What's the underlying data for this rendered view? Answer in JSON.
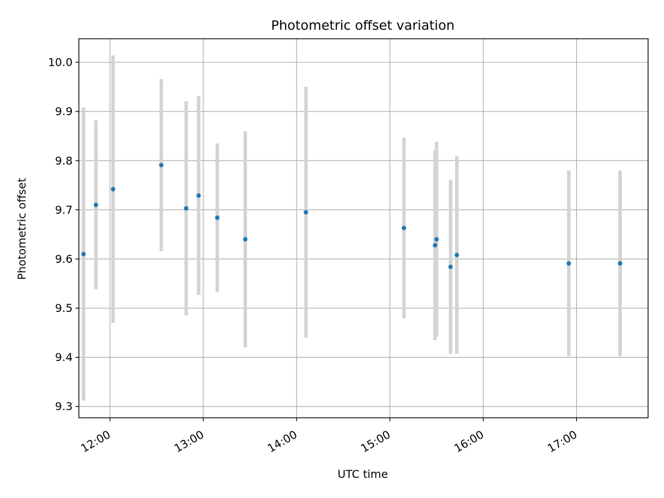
{
  "chart_data": {
    "type": "scatter",
    "title": "Photometric offset variation",
    "xlabel": "UTC time",
    "ylabel": "Photometric offset",
    "x_axis": "time",
    "xlim": [
      "11:40",
      "17:46"
    ],
    "ylim": [
      9.277,
      10.048
    ],
    "xticks": [
      "12:00",
      "13:00",
      "14:00",
      "15:00",
      "16:00",
      "17:00"
    ],
    "yticks": [
      9.3,
      9.4,
      9.5,
      9.6,
      9.7,
      9.8,
      9.9,
      10.0
    ],
    "grid": true,
    "colors": {
      "points": "#1f77b4",
      "errorbars": "#d3d3d3",
      "grid": "#b0b0b0"
    },
    "series": [
      {
        "points": [
          {
            "x": "11:43",
            "y": 9.61,
            "yerr": 0.298
          },
          {
            "x": "11:51",
            "y": 9.71,
            "yerr": 0.172
          },
          {
            "x": "12:02",
            "y": 9.742,
            "yerr": 0.272
          },
          {
            "x": "12:33",
            "y": 9.791,
            "yerr": 0.175
          },
          {
            "x": "12:49",
            "y": 9.703,
            "yerr": 0.218
          },
          {
            "x": "12:57",
            "y": 9.729,
            "yerr": 0.202
          },
          {
            "x": "13:09",
            "y": 9.684,
            "yerr": 0.151
          },
          {
            "x": "13:27",
            "y": 9.64,
            "yerr": 0.22
          },
          {
            "x": "14:06",
            "y": 9.695,
            "yerr": 0.255
          },
          {
            "x": "15:09",
            "y": 9.663,
            "yerr": 0.184
          },
          {
            "x": "15:29",
            "y": 9.628,
            "yerr": 0.193
          },
          {
            "x": "15:30",
            "y": 9.64,
            "yerr": 0.198
          },
          {
            "x": "15:39",
            "y": 9.584,
            "yerr": 0.177
          },
          {
            "x": "15:43",
            "y": 9.608,
            "yerr": 0.201
          },
          {
            "x": "16:55",
            "y": 9.591,
            "yerr": 0.189
          },
          {
            "x": "17:28",
            "y": 9.591,
            "yerr": 0.189
          }
        ]
      }
    ]
  }
}
